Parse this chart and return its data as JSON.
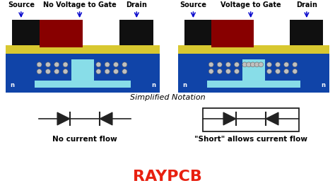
{
  "bg_color": "#ffffff",
  "left_title": "No Voltage to Gate",
  "right_title": "Voltage to Gate",
  "source_label": "Source",
  "drain_label": "Drain",
  "simplified_label": "Simplified Notation",
  "no_current_label": "No current flow",
  "short_label": "\"Short\" allows current flow",
  "raypcb_label": "RAYPCB",
  "raypcb_color": "#e82010",
  "arrow_color": "#0000cc",
  "text_color": "#000000",
  "n_label": "n",
  "plus_color": "#ffffff",
  "dark_blue": "#1044a8",
  "light_blue": "#30b8d0",
  "cyan_inner": "#88dde8",
  "yellow": "#d8c830",
  "dark_red": "#880000",
  "black": "#101010",
  "ball_color": "#c0c0c0",
  "ball_edge": "#606060"
}
